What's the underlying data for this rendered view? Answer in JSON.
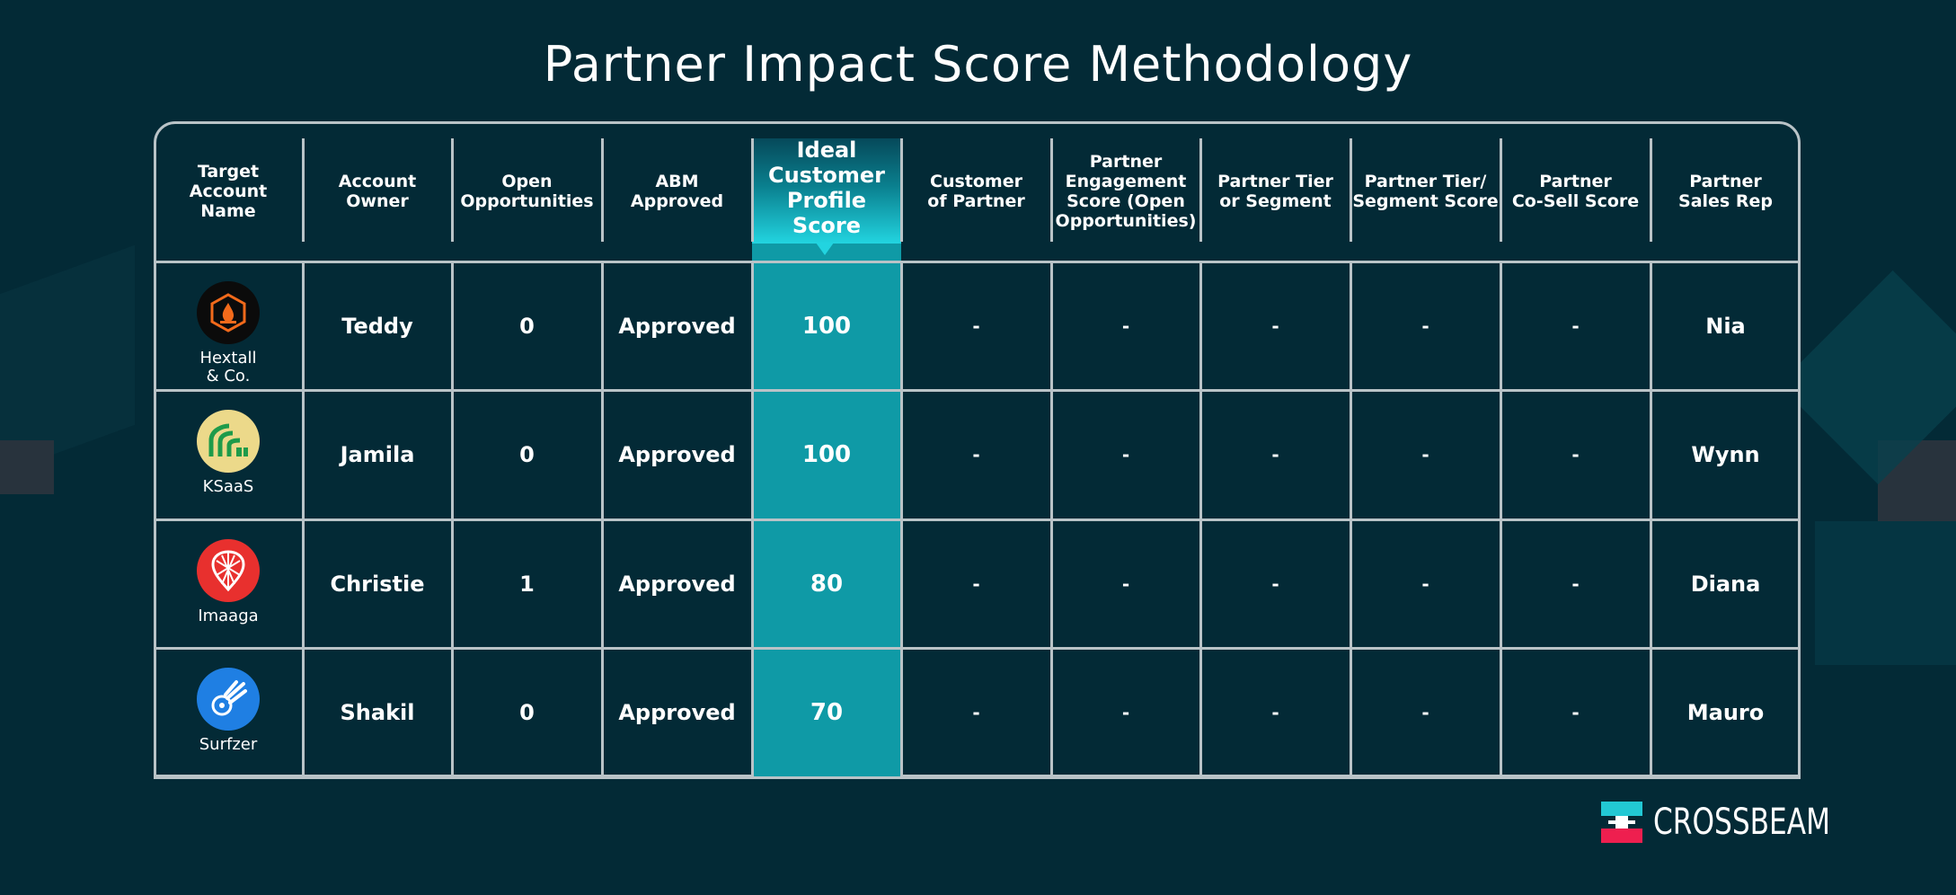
{
  "title": "Partner Impact Score Methodology",
  "chart_data": {
    "type": "table",
    "title": "Partner Impact Score Methodology",
    "columns": [
      "Target\nAccount\nName",
      "Account\nOwner",
      "Open\nOpportunities",
      "ABM\nApproved",
      "Ideal\nCustomer\nProfile\nScore",
      "Customer\nof Partner",
      "Partner\nEngagement\nScore (Open\nOpportunities)",
      "Partner Tier\nor Segment",
      "Partner Tier/\nSegment Score",
      "Partner\nCo-Sell Score",
      "Partner\nSales Rep"
    ],
    "highlighted_column": "Ideal Customer Profile Score",
    "rows": [
      {
        "account": "Hextall\n& Co.",
        "owner": "Teddy",
        "open_opps": "0",
        "abm": "Approved",
        "icp": "100",
        "customer_of_partner": "-",
        "engagement": "-",
        "tier": "-",
        "tier_score": "-",
        "cosell": "-",
        "rep": "Nia"
      },
      {
        "account": "KSaaS",
        "owner": "Jamila",
        "open_opps": "0",
        "abm": "Approved",
        "icp": "100",
        "customer_of_partner": "-",
        "engagement": "-",
        "tier": "-",
        "tier_score": "-",
        "cosell": "-",
        "rep": "Wynn"
      },
      {
        "account": "Imaaga",
        "owner": "Christie",
        "open_opps": "1",
        "abm": "Approved",
        "icp": "80",
        "customer_of_partner": "-",
        "engagement": "-",
        "tier": "-",
        "tier_score": "-",
        "cosell": "-",
        "rep": "Diana"
      },
      {
        "account": "Surfzer",
        "owner": "Shakil",
        "open_opps": "0",
        "abm": "Approved",
        "icp": "70",
        "customer_of_partner": "-",
        "engagement": "-",
        "tier": "-",
        "tier_score": "-",
        "cosell": "-",
        "rep": "Mauro"
      }
    ]
  },
  "logos": [
    {
      "icon": "flame-shield-icon",
      "bg": "#0b0b0b",
      "fg": "#f26a1b"
    },
    {
      "icon": "arches-icon",
      "bg": "#ecd98a",
      "fg": "#1e9b4a"
    },
    {
      "icon": "lattice-pin-icon",
      "bg": "#e8302e",
      "fg": "#ffffff"
    },
    {
      "icon": "comet-icon",
      "bg": "#1f7fe3",
      "fg": "#ffffff"
    }
  ],
  "brand": {
    "name": "CROSSBEAM",
    "colors": {
      "top": "#22c8d4",
      "bottom": "#ee1f4f"
    }
  },
  "colors": {
    "background": "#032a36",
    "highlight": "#0f9aa6",
    "grid": "#b9c3c7"
  }
}
